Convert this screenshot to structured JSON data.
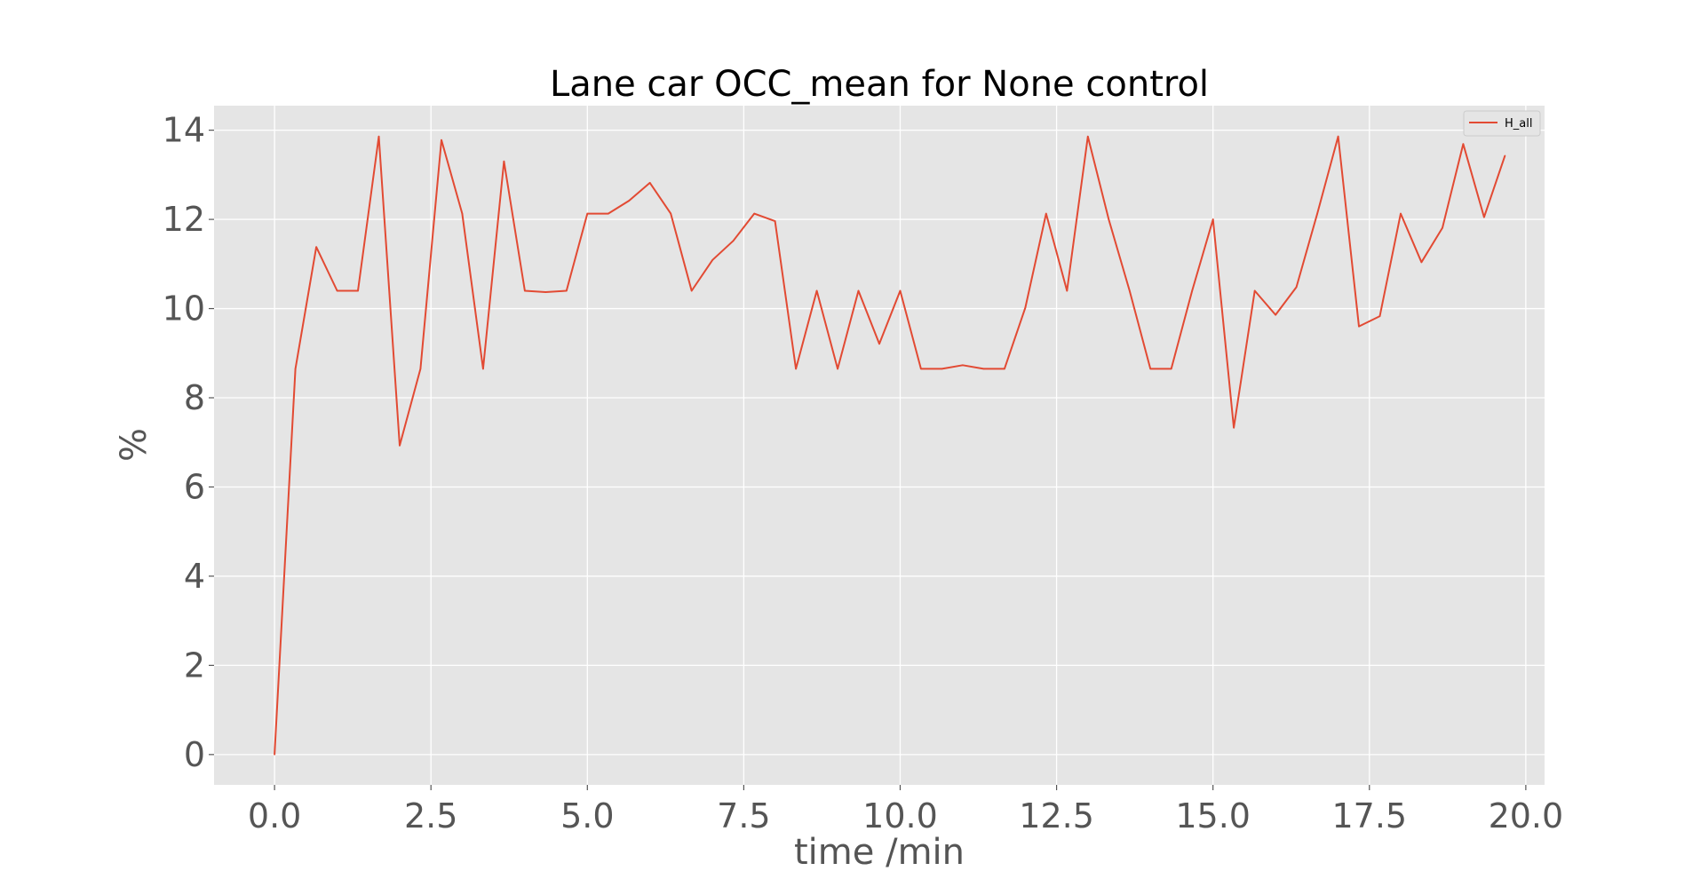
{
  "chart_data": {
    "type": "line",
    "title": "Lane car OCC_mean for None control",
    "xlabel": "time /min",
    "ylabel": "%",
    "xlim": [
      -0.967,
      20.3
    ],
    "ylim": [
      -0.68,
      14.55
    ],
    "xticks": [
      0.0,
      2.5,
      5.0,
      7.5,
      10.0,
      12.5,
      15.0,
      17.5,
      20.0
    ],
    "xtick_labels": [
      "0.0",
      "2.5",
      "5.0",
      "7.5",
      "10.0",
      "12.5",
      "15.0",
      "17.5",
      "20.0"
    ],
    "yticks": [
      0,
      2,
      4,
      6,
      8,
      10,
      12,
      14
    ],
    "ytick_labels": [
      "0",
      "2",
      "4",
      "6",
      "8",
      "10",
      "12",
      "14"
    ],
    "grid": true,
    "legend_position": "top-right",
    "series": [
      {
        "name": "H_all",
        "color": "#E24A33",
        "x": [
          0.0,
          0.333,
          0.667,
          1.0,
          1.333,
          1.667,
          2.0,
          2.333,
          2.667,
          3.0,
          3.333,
          3.667,
          4.0,
          4.333,
          4.667,
          5.0,
          5.333,
          5.667,
          6.0,
          6.333,
          6.667,
          7.0,
          7.333,
          7.667,
          8.0,
          8.333,
          8.667,
          9.0,
          9.333,
          9.667,
          10.0,
          10.333,
          10.667,
          11.0,
          11.333,
          11.667,
          12.0,
          12.333,
          12.667,
          13.0,
          13.333,
          13.667,
          14.0,
          14.333,
          14.667,
          15.0,
          15.333,
          15.667,
          16.0,
          16.333,
          16.667,
          17.0,
          17.333,
          17.667,
          18.0,
          18.333,
          18.667,
          19.0,
          19.333,
          19.667
        ],
        "y": [
          0.0,
          8.65,
          11.38,
          10.4,
          10.4,
          13.86,
          6.93,
          8.65,
          13.78,
          12.13,
          8.65,
          13.3,
          10.4,
          10.37,
          10.4,
          12.13,
          12.13,
          12.42,
          12.82,
          12.13,
          10.4,
          11.09,
          11.52,
          12.13,
          11.96,
          8.65,
          10.4,
          8.65,
          10.4,
          9.21,
          10.4,
          8.65,
          8.65,
          8.73,
          8.65,
          8.65,
          10.02,
          12.13,
          10.4,
          13.86,
          12.0,
          10.4,
          8.65,
          8.65,
          10.4,
          12.0,
          7.33,
          10.4,
          9.86,
          10.48,
          12.13,
          13.86,
          9.6,
          9.83,
          12.13,
          11.04,
          11.81,
          13.69,
          12.05,
          13.43
        ]
      }
    ]
  }
}
